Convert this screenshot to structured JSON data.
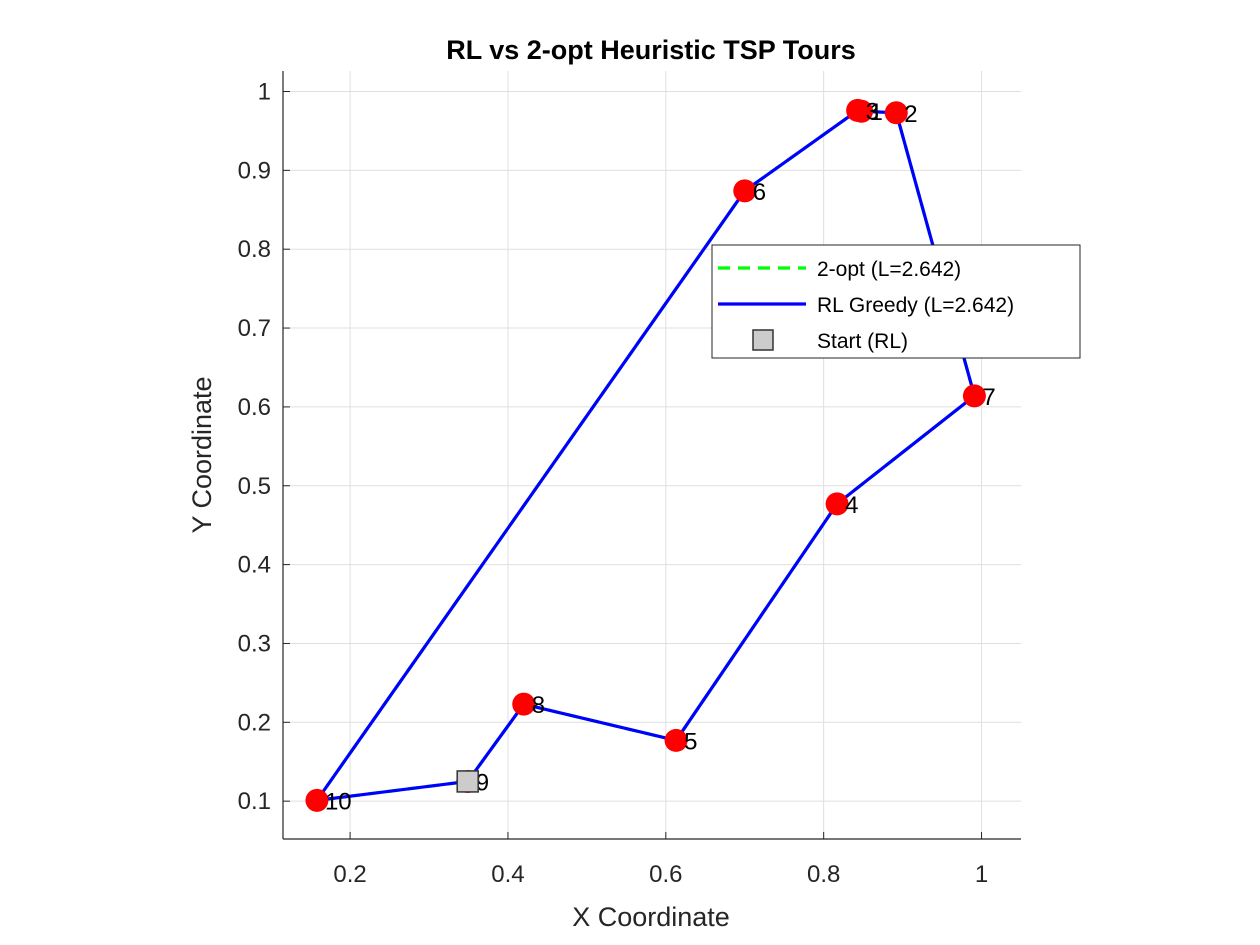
{
  "chart_data": {
    "type": "line",
    "title": "RL vs 2-opt Heuristic TSP Tours",
    "xlabel": "X Coordinate",
    "ylabel": "Y Coordinate",
    "xlim": [
      0.115,
      1.05
    ],
    "ylim": [
      0.052,
      1.026
    ],
    "xticks": [
      0.2,
      0.4,
      0.6,
      0.8,
      1
    ],
    "yticks": [
      0.1,
      0.2,
      0.3,
      0.4,
      0.5,
      0.6,
      0.7,
      0.8,
      0.9,
      1
    ],
    "xtick_labels": [
      "0.2",
      "0.4",
      "0.6",
      "0.8",
      "1"
    ],
    "ytick_labels": [
      "0.1",
      "0.2",
      "0.3",
      "0.4",
      "0.5",
      "0.6",
      "0.7",
      "0.8",
      "0.9",
      "1"
    ],
    "grid": true,
    "legend_position": "inside-right",
    "cities": [
      {
        "id": "1",
        "x": 0.848,
        "y": 0.975
      },
      {
        "id": "2",
        "x": 0.892,
        "y": 0.973
      },
      {
        "id": "3",
        "x": 0.843,
        "y": 0.976
      },
      {
        "id": "4",
        "x": 0.817,
        "y": 0.477
      },
      {
        "id": "5",
        "x": 0.613,
        "y": 0.177
      },
      {
        "id": "6",
        "x": 0.7,
        "y": 0.874
      },
      {
        "id": "7",
        "x": 0.991,
        "y": 0.614
      },
      {
        "id": "8",
        "x": 0.42,
        "y": 0.223
      },
      {
        "id": "9",
        "x": 0.349,
        "y": 0.125
      },
      {
        "id": "10",
        "x": 0.158,
        "y": 0.101
      }
    ],
    "series": [
      {
        "name": "2-opt (L=2.642)",
        "style": "dashed",
        "color": "#00ff00",
        "tour": [
          "9",
          "8",
          "5",
          "4",
          "7",
          "2",
          "1",
          "3",
          "6",
          "10",
          "9"
        ]
      },
      {
        "name": "RL Greedy (L=2.642)",
        "style": "solid",
        "color": "#0000ff",
        "tour": [
          "9",
          "8",
          "5",
          "4",
          "7",
          "2",
          "1",
          "3",
          "6",
          "10",
          "9"
        ]
      }
    ],
    "start": {
      "name": "Start (RL)",
      "city": "9",
      "color": "#cccccc"
    },
    "city_marker_color": "#ff0000"
  }
}
